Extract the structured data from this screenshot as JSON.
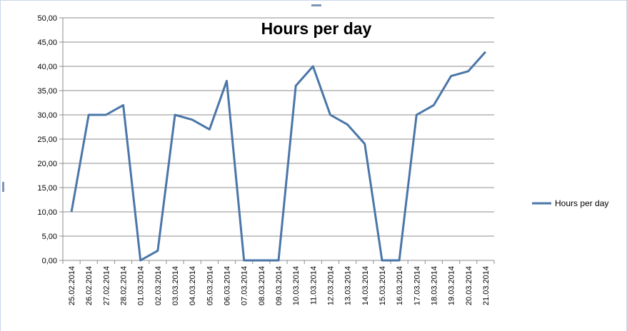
{
  "chart_data": {
    "type": "line",
    "title": "Hours per day",
    "xlabel": "",
    "ylabel": "",
    "ylim": [
      0,
      50
    ],
    "ytick_step": 5,
    "ytick_labels": [
      "0,00",
      "5,00",
      "10,00",
      "15,00",
      "20,00",
      "25,00",
      "30,00",
      "35,00",
      "40,00",
      "45,00",
      "50,00"
    ],
    "grid": true,
    "legend_position": "right",
    "categories": [
      "25.02.2014",
      "26.02.2014",
      "27.02.2014",
      "28.02.2014",
      "01.03.2014",
      "02.03.2014",
      "03.03.2014",
      "04.03.2014",
      "05.03.2014",
      "06.03.2014",
      "07.03.2014",
      "08.03.2014",
      "09.03.2014",
      "10.03.2014",
      "11.03.2014",
      "12.03.2014",
      "13.03.2014",
      "14.03.2014",
      "15.03.2014",
      "16.03.2014",
      "17.03.2014",
      "18.03.2014",
      "19.03.2014",
      "20.03.2014",
      "21.03.2014"
    ],
    "series": [
      {
        "name": "Hours per day",
        "color": "#4a76a8",
        "values": [
          10,
          30,
          30,
          32,
          0,
          2,
          30,
          29,
          27,
          37,
          0,
          0,
          0,
          36,
          40,
          30,
          28,
          24,
          0,
          0,
          30,
          32,
          38,
          39,
          43
        ]
      }
    ]
  }
}
